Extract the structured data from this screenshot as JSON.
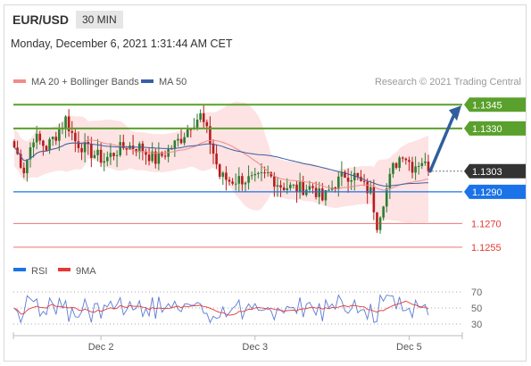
{
  "header": {
    "symbol": "EUR/USD",
    "timeframe": "30 MIN",
    "datetime": "Monday, December 6, 2021 1:31:44 AM CET"
  },
  "legend": {
    "bollinger": "MA 20 + Bollinger Bands",
    "ma50": "MA 50",
    "credit": "Research © 2021 Trading Central"
  },
  "rsi_legend": {
    "rsi": "RSI",
    "ma9": "9MA"
  },
  "colors": {
    "bull": "#2e7d32",
    "bear": "#b71c1c",
    "band": "#fde0e0",
    "ma20": "#f28b8b",
    "ma50": "#3b5ea6",
    "green_level": "#5aa02c",
    "blue_level": "#1a73e8",
    "red_level": "#e53935",
    "last_price": "#333333",
    "arrow": "#2f5f9e"
  },
  "chart_data": {
    "type": "candlestick",
    "y_range": [
      1.1242,
      1.1366
    ],
    "x_labels": [
      {
        "label": "Dec 2",
        "index": 27
      },
      {
        "label": "Dec 3",
        "index": 75
      },
      {
        "label": "Dec 5",
        "index": 123
      }
    ],
    "levels": [
      {
        "value": 1.1345,
        "label": "1.1345",
        "kind": "resistance"
      },
      {
        "value": 1.133,
        "label": "1.1330",
        "kind": "resistance"
      },
      {
        "value": 1.1303,
        "label": "1.1303",
        "kind": "last"
      },
      {
        "value": 1.129,
        "label": "1.1290",
        "kind": "pivot"
      },
      {
        "value": 1.127,
        "label": "1.1270",
        "kind": "support"
      },
      {
        "value": 1.1255,
        "label": "1.1255",
        "kind": "support"
      }
    ],
    "forecast_arrow": {
      "from_index": 129,
      "from_value": 1.1303,
      "to_value": 1.1345
    },
    "rsi": {
      "y_range": [
        20,
        80
      ],
      "levels": [
        30,
        50,
        70
      ]
    }
  }
}
